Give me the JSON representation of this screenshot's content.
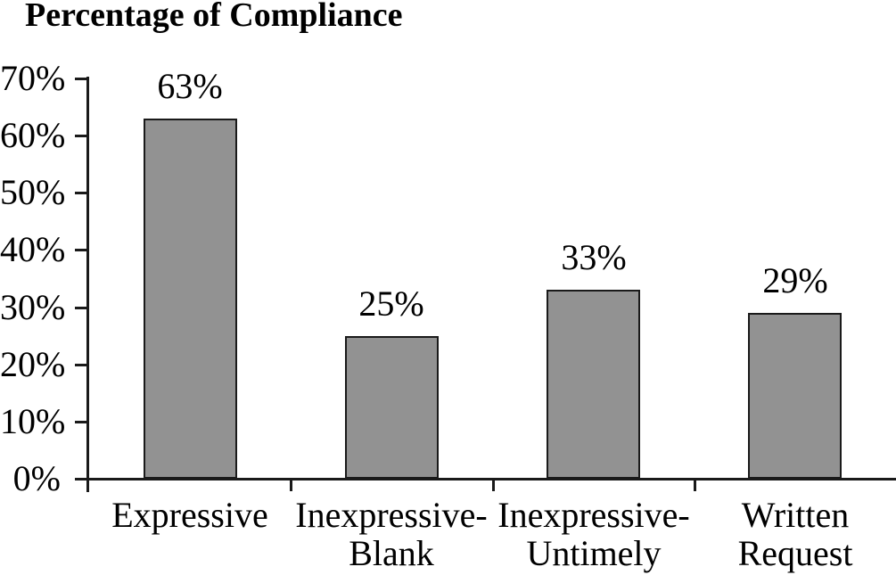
{
  "chart_data": {
    "type": "bar",
    "title": "Percentage of Compliance",
    "categories": [
      "Expressive",
      "Inexpressive-\nBlank",
      "Inexpressive-\nUntimely",
      "Written\nRequest"
    ],
    "values": [
      63,
      25,
      33,
      29
    ],
    "value_labels": [
      "63%",
      "25%",
      "33%",
      "29%"
    ],
    "ylim": [
      0,
      70
    ],
    "ytick_values": [
      0,
      10,
      20,
      30,
      40,
      50,
      60,
      70
    ],
    "ytick_labels": [
      "0%",
      "10%",
      "20%",
      "30%",
      "40%",
      "50%",
      "60%",
      "70%"
    ],
    "xlabel": "",
    "ylabel": "",
    "grid": false,
    "legend": "none",
    "bar_fill": "#929292",
    "bar_border": "#1a1a1a",
    "axis_color": "#1a1a1a",
    "text_color": "#000000",
    "background": "#ffffff"
  }
}
